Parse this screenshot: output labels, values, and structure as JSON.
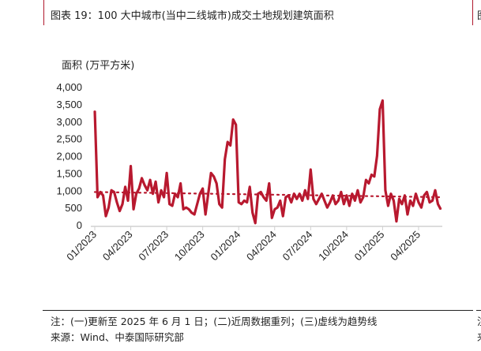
{
  "header": {
    "title": "图表 19：100 大中城市(当中二线城市)成交土地规划建筑面积",
    "edge_title": "图"
  },
  "footer": {
    "note": "注：(一)更新至 2025 年 6 月 1 日；(二)近周数据重列；(三)虚线为趋势线",
    "source": "来源：Wind、中泰国际研究部",
    "edge_note": "注",
    "edge_source": "来"
  },
  "chart_data": {
    "type": "line",
    "title": "100 大中城市(当中二线城市)成交土地规划建筑面积",
    "ylabel": "面积 (万平方米)",
    "xlabel": "",
    "ylim": [
      0,
      4000
    ],
    "yticks": [
      "0",
      "500",
      "1,000",
      "1,500",
      "2,000",
      "2,500",
      "3,000",
      "3,500",
      "4,000"
    ],
    "ytick_values": [
      0,
      500,
      1000,
      1500,
      2000,
      2500,
      3000,
      3500,
      4000
    ],
    "xticks": [
      "01/2023",
      "04/2023",
      "07/2023",
      "10/2023",
      "01/2024",
      "04/2024",
      "07/2024",
      "10/2024",
      "01/2025",
      "04/2025"
    ],
    "xtick_week_index": [
      0,
      13,
      26,
      39,
      52,
      65,
      78,
      91,
      104,
      117
    ],
    "frequency": "weekly",
    "color": "#b8192f",
    "series": [
      {
        "name": "成交土地规划建筑面积",
        "values": [
          3300,
          800,
          950,
          850,
          250,
          500,
          1000,
          950,
          650,
          400,
          600,
          1100,
          700,
          1700,
          450,
          900,
          1050,
          1350,
          1150,
          1000,
          1300,
          900,
          1250,
          650,
          1000,
          800,
          1500,
          600,
          550,
          900,
          800,
          1200,
          450,
          500,
          450,
          350,
          300,
          600,
          900,
          1050,
          300,
          900,
          1500,
          1400,
          1200,
          600,
          500,
          1900,
          2400,
          2300,
          3050,
          2900,
          650,
          600,
          700,
          650,
          1100,
          350,
          50,
          900,
          950,
          800,
          700,
          1200,
          200,
          450,
          500,
          700,
          250,
          800,
          850,
          650,
          900,
          750,
          900,
          700,
          1000,
          750,
          1600,
          750,
          600,
          750,
          900,
          700,
          500,
          650,
          850,
          600,
          700,
          950,
          600,
          850,
          550,
          900,
          700,
          1000,
          650,
          800,
          1300,
          1200,
          1450,
          1400,
          2000,
          3350,
          3600,
          1000,
          550,
          900,
          700,
          100,
          750,
          600,
          850,
          300,
          700,
          550,
          900,
          650,
          500,
          850,
          950,
          650,
          700,
          1000,
          600,
          450
        ]
      }
    ],
    "trend": {
      "name": "趋势线",
      "style": "dotted",
      "start": 950,
      "end": 800
    }
  }
}
